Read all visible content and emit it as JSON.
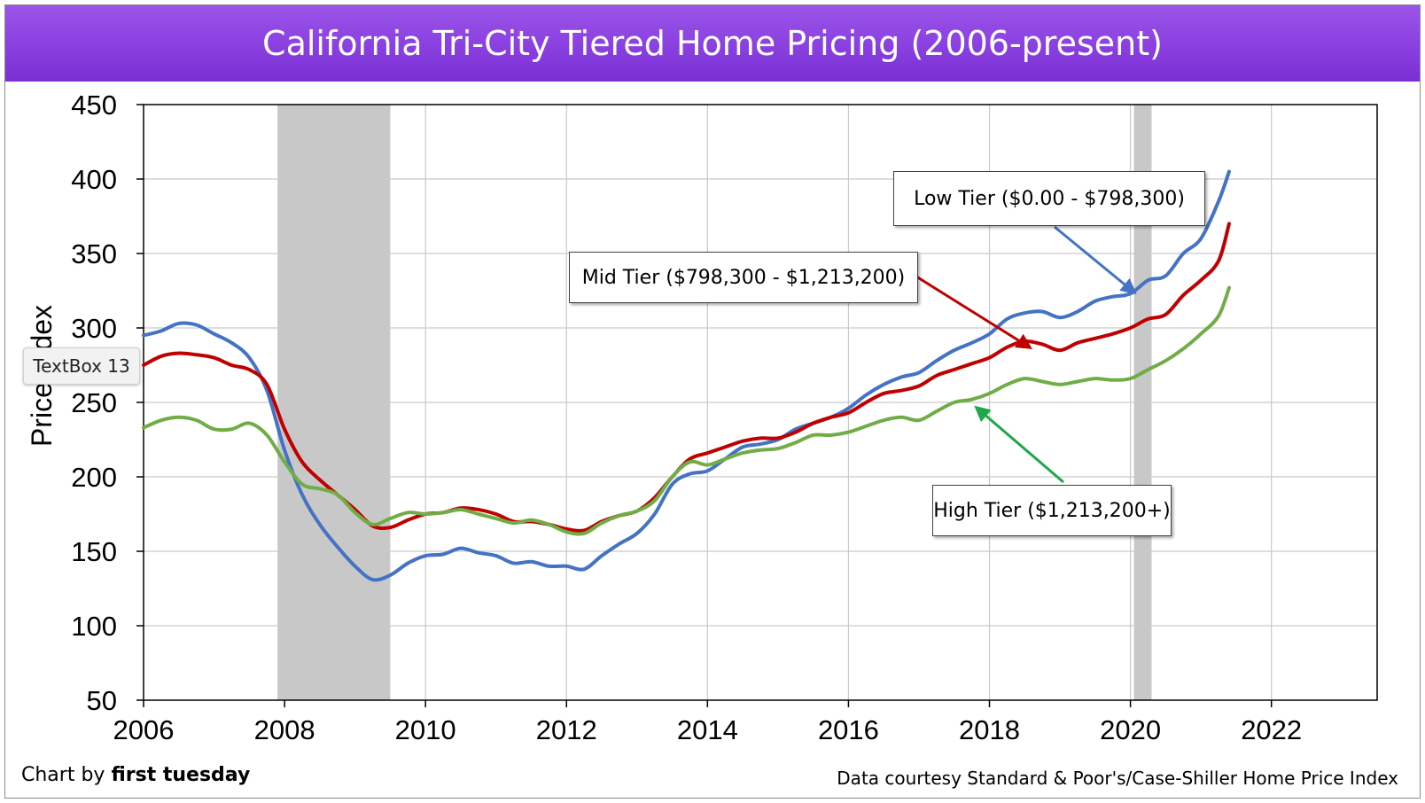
{
  "tooltip": "TextBox 13",
  "chart_data": {
    "type": "line",
    "title": "California Tri-City Tiered Home Pricing (2006-present)",
    "ylabel": "Price Index",
    "xlabel": "",
    "xlim": [
      2006,
      2023.5
    ],
    "ylim": [
      50,
      450
    ],
    "x_ticks": [
      "2006",
      "2008",
      "2010",
      "2012",
      "2014",
      "2016",
      "2018",
      "2020",
      "2022"
    ],
    "y_ticks": [
      "50",
      "100",
      "150",
      "200",
      "250",
      "300",
      "350",
      "400",
      "450"
    ],
    "grid": true,
    "recession_bands": [
      [
        2007.9,
        2009.5
      ],
      [
        2020.05,
        2020.3
      ]
    ],
    "series": [
      {
        "name": "Low Tier ($0.00 - $798,300)",
        "color": "#4472c4",
        "x": [
          2006,
          2006.25,
          2006.5,
          2006.75,
          2007,
          2007.25,
          2007.5,
          2007.75,
          2008,
          2008.25,
          2008.5,
          2008.75,
          2009,
          2009.25,
          2009.5,
          2009.75,
          2010,
          2010.25,
          2010.5,
          2010.75,
          2011,
          2011.25,
          2011.5,
          2011.75,
          2012,
          2012.25,
          2012.5,
          2012.75,
          2013,
          2013.25,
          2013.5,
          2013.75,
          2014,
          2014.25,
          2014.5,
          2014.75,
          2015,
          2015.25,
          2015.5,
          2015.75,
          2016,
          2016.25,
          2016.5,
          2016.75,
          2017,
          2017.25,
          2017.5,
          2017.75,
          2018,
          2018.25,
          2018.5,
          2018.75,
          2019,
          2019.25,
          2019.5,
          2019.75,
          2020,
          2020.25,
          2020.5,
          2020.75,
          2021,
          2021.25,
          2021.4
        ],
        "values": [
          295,
          298,
          303,
          302,
          296,
          290,
          280,
          258,
          218,
          188,
          168,
          153,
          140,
          131,
          134,
          142,
          147,
          148,
          152,
          149,
          147,
          142,
          143,
          140,
          140,
          138,
          147,
          155,
          162,
          175,
          195,
          202,
          204,
          212,
          220,
          222,
          225,
          232,
          236,
          240,
          246,
          255,
          262,
          267,
          270,
          278,
          285,
          290,
          296,
          306,
          310,
          311,
          307,
          311,
          318,
          321,
          323,
          332,
          335,
          350,
          360,
          385,
          405
        ]
      },
      {
        "name": "Mid Tier ($798,300 - $1,213,200)",
        "color": "#c00000",
        "x": [
          2006,
          2006.25,
          2006.5,
          2006.75,
          2007,
          2007.25,
          2007.5,
          2007.75,
          2008,
          2008.25,
          2008.5,
          2008.75,
          2009,
          2009.25,
          2009.5,
          2009.75,
          2010,
          2010.25,
          2010.5,
          2010.75,
          2011,
          2011.25,
          2011.5,
          2011.75,
          2012,
          2012.25,
          2012.5,
          2012.75,
          2013,
          2013.25,
          2013.5,
          2013.75,
          2014,
          2014.25,
          2014.5,
          2014.75,
          2015,
          2015.25,
          2015.5,
          2015.75,
          2016,
          2016.25,
          2016.5,
          2016.75,
          2017,
          2017.25,
          2017.5,
          2017.75,
          2018,
          2018.25,
          2018.5,
          2018.75,
          2019,
          2019.25,
          2019.5,
          2019.75,
          2020,
          2020.25,
          2020.5,
          2020.75,
          2021,
          2021.25,
          2021.4
        ],
        "values": [
          275,
          281,
          283,
          282,
          280,
          275,
          272,
          262,
          232,
          210,
          198,
          188,
          178,
          167,
          166,
          171,
          175,
          176,
          179,
          178,
          175,
          170,
          170,
          168,
          165,
          164,
          170,
          174,
          177,
          186,
          200,
          212,
          216,
          220,
          224,
          226,
          226,
          230,
          236,
          240,
          243,
          250,
          256,
          258,
          261,
          268,
          272,
          276,
          280,
          287,
          291,
          289,
          285,
          290,
          293,
          296,
          300,
          306,
          309,
          322,
          332,
          345,
          370
        ]
      },
      {
        "name": "High Tier ($1,213,200+)",
        "color": "#70ad47",
        "x": [
          2006,
          2006.25,
          2006.5,
          2006.75,
          2007,
          2007.25,
          2007.5,
          2007.75,
          2008,
          2008.25,
          2008.5,
          2008.75,
          2009,
          2009.25,
          2009.5,
          2009.75,
          2010,
          2010.25,
          2010.5,
          2010.75,
          2011,
          2011.25,
          2011.5,
          2011.75,
          2012,
          2012.25,
          2012.5,
          2012.75,
          2013,
          2013.25,
          2013.5,
          2013.75,
          2014,
          2014.25,
          2014.5,
          2014.75,
          2015,
          2015.25,
          2015.5,
          2015.75,
          2016,
          2016.25,
          2016.5,
          2016.75,
          2017,
          2017.25,
          2017.5,
          2017.75,
          2018,
          2018.25,
          2018.5,
          2018.75,
          2019,
          2019.25,
          2019.5,
          2019.75,
          2020,
          2020.25,
          2020.5,
          2020.75,
          2021,
          2021.25,
          2021.4
        ],
        "values": [
          233,
          238,
          240,
          238,
          232,
          232,
          236,
          228,
          210,
          195,
          192,
          188,
          176,
          168,
          172,
          176,
          175,
          176,
          178,
          175,
          172,
          169,
          171,
          168,
          163,
          162,
          169,
          174,
          177,
          184,
          200,
          210,
          208,
          212,
          216,
          218,
          219,
          223,
          228,
          228,
          230,
          234,
          238,
          240,
          238,
          244,
          250,
          252,
          256,
          262,
          266,
          264,
          262,
          264,
          266,
          265,
          266,
          272,
          278,
          286,
          296,
          308,
          327
        ]
      }
    ],
    "annotations": [
      {
        "text": "Low Tier ($0.00 - $798,300)"
      },
      {
        "text": "Mid Tier ($798,300 - $1,213,200)"
      },
      {
        "text": "High Tier ($1,213,200+)"
      }
    ],
    "credits": {
      "left_prefix": "Chart by ",
      "left_brand": "first tuesday",
      "right": "Data courtesy Standard & Poor's/Case-Shiller Home Price Index"
    }
  }
}
